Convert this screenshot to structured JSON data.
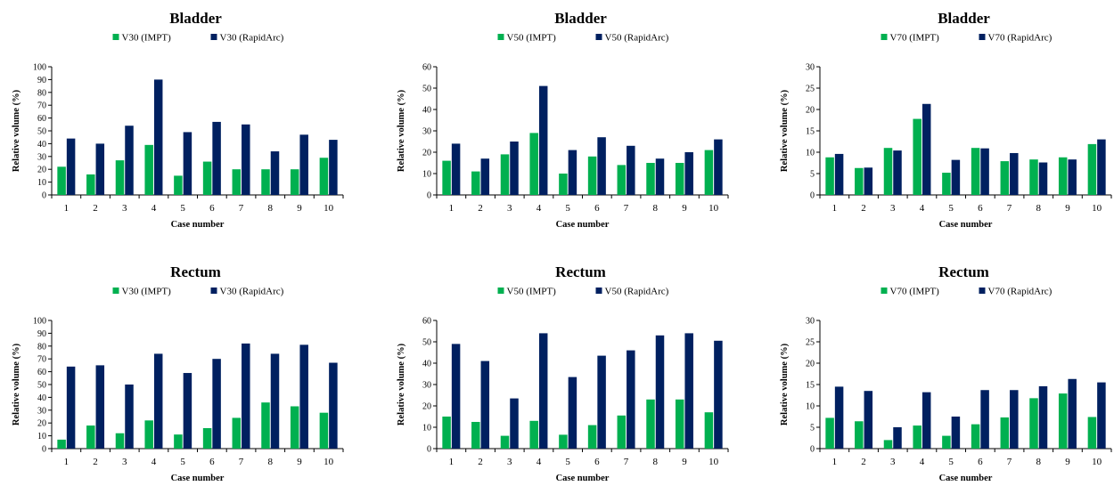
{
  "colors": {
    "impt": "#00b050",
    "rapidarc": "#002060"
  },
  "chart_data": [
    {
      "type": "bar",
      "title": "Bladder",
      "categories": [
        "1",
        "2",
        "3",
        "4",
        "5",
        "6",
        "7",
        "8",
        "9",
        "10"
      ],
      "series": [
        {
          "name": "V30 (IMPT)",
          "values": [
            22,
            16,
            27,
            39,
            15,
            26,
            20,
            20,
            20,
            29
          ]
        },
        {
          "name": "V30 (RapidArc)",
          "values": [
            44,
            40,
            54,
            90,
            49,
            57,
            55,
            34,
            47,
            43
          ]
        }
      ],
      "xlabel": "Case number",
      "ylabel": "Relative volume (%)",
      "ylim": [
        0,
        100
      ],
      "yticks": [
        0,
        10,
        20,
        30,
        40,
        50,
        60,
        70,
        80,
        90,
        100
      ]
    },
    {
      "type": "bar",
      "title": "Bladder",
      "categories": [
        "1",
        "2",
        "3",
        "4",
        "5",
        "6",
        "7",
        "8",
        "9",
        "10"
      ],
      "series": [
        {
          "name": "V50 (IMPT)",
          "values": [
            16,
            11,
            19,
            29,
            10,
            18,
            14,
            15,
            15,
            21
          ]
        },
        {
          "name": "V50 (RapidArc)",
          "values": [
            24,
            17,
            25,
            51,
            21,
            27,
            23,
            17,
            20,
            26
          ]
        }
      ],
      "xlabel": "Case number",
      "ylabel": "Relative volume (%)",
      "ylim": [
        0,
        60
      ],
      "yticks": [
        0,
        10,
        20,
        30,
        40,
        50,
        60
      ]
    },
    {
      "type": "bar",
      "title": "Bladder",
      "categories": [
        "1",
        "2",
        "3",
        "4",
        "5",
        "6",
        "7",
        "8",
        "9",
        "10"
      ],
      "series": [
        {
          "name": "V70 (IMPT)",
          "values": [
            8.8,
            6.3,
            11.0,
            17.8,
            5.2,
            11.0,
            7.9,
            8.3,
            8.8,
            11.9
          ]
        },
        {
          "name": "V70 (RapidArc)",
          "values": [
            9.6,
            6.4,
            10.4,
            21.3,
            8.2,
            10.9,
            9.8,
            7.6,
            8.3,
            13.0
          ]
        }
      ],
      "xlabel": "Case number",
      "ylabel": "Relative volume (%)",
      "ylim": [
        0,
        30
      ],
      "yticks": [
        0,
        5,
        10,
        15,
        20,
        25,
        30
      ]
    },
    {
      "type": "bar",
      "title": "Rectum",
      "categories": [
        "1",
        "2",
        "3",
        "4",
        "5",
        "6",
        "7",
        "8",
        "9",
        "10"
      ],
      "series": [
        {
          "name": "V30 (IMPT)",
          "values": [
            7,
            18,
            12,
            22,
            11,
            16,
            24,
            36,
            33,
            28
          ]
        },
        {
          "name": "V30 (RapidArc)",
          "values": [
            64,
            65,
            50,
            74,
            59,
            70,
            82,
            74,
            81,
            67
          ]
        }
      ],
      "xlabel": "Case number",
      "ylabel": "Relative volume (%)",
      "ylim": [
        0,
        100
      ],
      "yticks": [
        0,
        10,
        20,
        30,
        40,
        50,
        60,
        70,
        80,
        90,
        100
      ]
    },
    {
      "type": "bar",
      "title": "Rectum",
      "categories": [
        "1",
        "2",
        "3",
        "4",
        "5",
        "6",
        "7",
        "8",
        "9",
        "10"
      ],
      "series": [
        {
          "name": "V50 (IMPT)",
          "values": [
            15,
            12.5,
            6,
            13,
            6.5,
            11,
            15.5,
            23,
            23,
            17
          ]
        },
        {
          "name": "V50 (RapidArc)",
          "values": [
            49,
            41,
            23.5,
            54,
            33.5,
            43.5,
            46,
            53,
            54,
            50.5
          ]
        }
      ],
      "xlabel": "Case number",
      "ylabel": "Relative volume (%)",
      "ylim": [
        0,
        60
      ],
      "yticks": [
        0,
        10,
        20,
        30,
        40,
        50,
        60
      ]
    },
    {
      "type": "bar",
      "title": "Rectum",
      "categories": [
        "1",
        "2",
        "3",
        "4",
        "5",
        "6",
        "7",
        "8",
        "9",
        "10"
      ],
      "series": [
        {
          "name": "V70 (IMPT)",
          "values": [
            7.2,
            6.4,
            2.0,
            5.4,
            3.0,
            5.7,
            7.3,
            11.8,
            12.9,
            7.4
          ]
        },
        {
          "name": "V70 (RapidArc)",
          "values": [
            14.5,
            13.5,
            5.0,
            13.2,
            7.5,
            13.7,
            13.7,
            14.6,
            16.3,
            15.5
          ]
        }
      ],
      "xlabel": "Case number",
      "ylabel": "Relative volume (%)",
      "ylim": [
        0,
        30
      ],
      "yticks": [
        0,
        5,
        10,
        15,
        20,
        25,
        30
      ]
    }
  ]
}
